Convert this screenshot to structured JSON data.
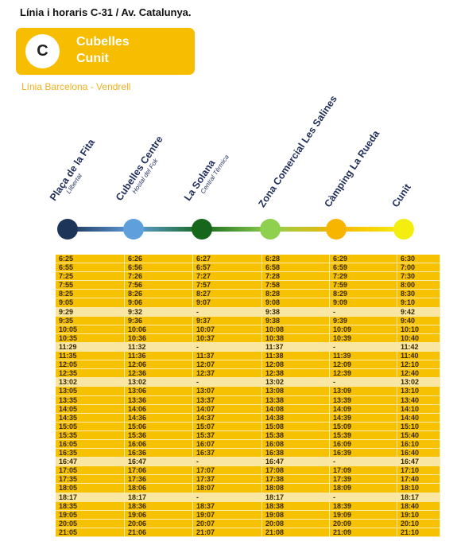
{
  "header": {
    "title": "Línia i horaris C-31 / Av. Catalunya.",
    "badge": {
      "letter": "C",
      "lines": [
        "Cubelles",
        "Cunit"
      ]
    },
    "subtitle": "Línia Barcelona - Vendrell"
  },
  "stops": [
    {
      "name": "Plaça de la Fita",
      "sub": "Llibertat",
      "color": "#1c3558"
    },
    {
      "name": "Cubelles Centre",
      "sub": "Hostal del Fok",
      "color": "#5f9fdc"
    },
    {
      "name": "La Solana",
      "sub": "Central Tèrmica",
      "color": "#16671c"
    },
    {
      "name": "Zona Comercial Les Salines",
      "sub": null,
      "color": "#8fd04f"
    },
    {
      "name": "Càmping La Rueda",
      "sub": null,
      "color": "#f7b500"
    },
    {
      "name": "Cunit",
      "sub": null,
      "color": "#f4ee10"
    }
  ],
  "table": {
    "rows": [
      [
        "6:25",
        "6:26",
        "6:27",
        "6:28",
        "6:29",
        "6:30"
      ],
      [
        "6:55",
        "6:56",
        "6:57",
        "6:58",
        "6:59",
        "7:00"
      ],
      [
        "7:25",
        "7:26",
        "7:27",
        "7:28",
        "7:29",
        "7:30"
      ],
      [
        "7:55",
        "7:56",
        "7:57",
        "7:58",
        "7:59",
        "8:00"
      ],
      [
        "8:25",
        "8:26",
        "8:27",
        "8:28",
        "8:29",
        "8:30"
      ],
      [
        "9:05",
        "9:06",
        "9:07",
        "9:08",
        "9:09",
        "9:10"
      ],
      [
        "9:29",
        "9:32",
        "-",
        "9:38",
        "-",
        "9:42"
      ],
      [
        "9:35",
        "9:36",
        "9:37",
        "9:38",
        "9:39",
        "9:40"
      ],
      [
        "10:05",
        "10:06",
        "10:07",
        "10:08",
        "10:09",
        "10:10"
      ],
      [
        "10:35",
        "10:36",
        "10:37",
        "10:38",
        "10:39",
        "10:40"
      ],
      [
        "11:29",
        "11:32",
        "-",
        "11:37",
        "-",
        "11:42"
      ],
      [
        "11:35",
        "11:36",
        "11:37",
        "11:38",
        "11:39",
        "11:40"
      ],
      [
        "12:05",
        "12:06",
        "12:07",
        "12:08",
        "12:09",
        "12:10"
      ],
      [
        "12:35",
        "12:36",
        "12:37",
        "12:38",
        "12:39",
        "12:40"
      ],
      [
        "13:02",
        "13:02",
        "-",
        "13:02",
        "-",
        "13:02"
      ],
      [
        "13:05",
        "13:06",
        "13:07",
        "13:08",
        "13:09",
        "13:10"
      ],
      [
        "13:35",
        "13:36",
        "13:37",
        "13:38",
        "13:39",
        "13:40"
      ],
      [
        "14:05",
        "14:06",
        "14:07",
        "14:08",
        "14:09",
        "14:10"
      ],
      [
        "14:35",
        "14:36",
        "14:37",
        "14:38",
        "14:39",
        "14:40"
      ],
      [
        "15:05",
        "15:06",
        "15:07",
        "15:08",
        "15:09",
        "15:10"
      ],
      [
        "15:35",
        "15:36",
        "15:37",
        "15:38",
        "15:39",
        "15:40"
      ],
      [
        "16:05",
        "16:06",
        "16:07",
        "16:08",
        "16:09",
        "16:10"
      ],
      [
        "16:35",
        "16:36",
        "16:37",
        "16:38",
        "16:39",
        "16:40"
      ],
      [
        "16:47",
        "16:47",
        "-",
        "16:47",
        "-",
        "16:47"
      ],
      [
        "17:05",
        "17:06",
        "17:07",
        "17:08",
        "17:09",
        "17:10"
      ],
      [
        "17:35",
        "17:36",
        "17:37",
        "17:38",
        "17:39",
        "17:40"
      ],
      [
        "18:05",
        "18:06",
        "18:07",
        "18:08",
        "18:09",
        "18:10"
      ],
      [
        "18:17",
        "18:17",
        "-",
        "18:17",
        "-",
        "18:17"
      ],
      [
        "18:35",
        "18:36",
        "18:37",
        "18:38",
        "18:39",
        "18:40"
      ],
      [
        "19:05",
        "19:06",
        "19:07",
        "19:08",
        "19:09",
        "19:10"
      ],
      [
        "20:05",
        "20:06",
        "20:07",
        "20:08",
        "20:09",
        "20:10"
      ],
      [
        "21:05",
        "21:06",
        "21:07",
        "21:08",
        "21:09",
        "21:10"
      ]
    ]
  }
}
